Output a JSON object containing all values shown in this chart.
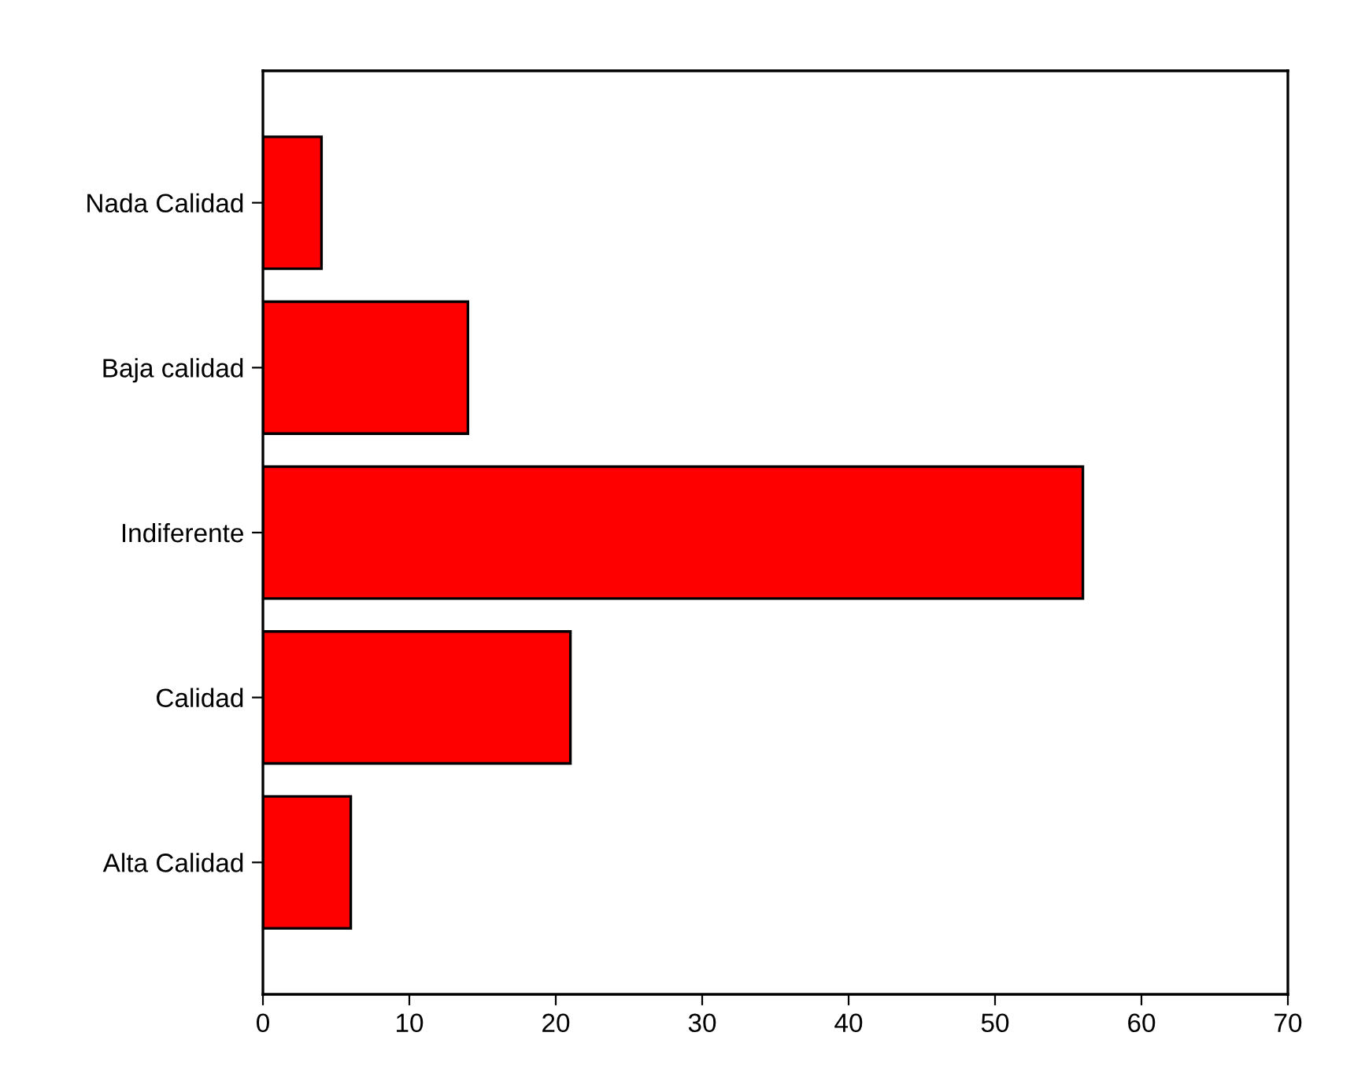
{
  "chart_data": {
    "type": "bar",
    "orientation": "horizontal",
    "categories": [
      "Nada Calidad",
      "Baja calidad",
      "Indiferente",
      "Calidad",
      "Alta Calidad"
    ],
    "values": [
      4,
      14,
      56,
      21,
      6
    ],
    "color": "#ff0000",
    "xlim": [
      0,
      70
    ],
    "xticks": [
      0,
      10,
      20,
      30,
      40,
      50,
      60,
      70
    ],
    "grid": false,
    "legend": false
  }
}
